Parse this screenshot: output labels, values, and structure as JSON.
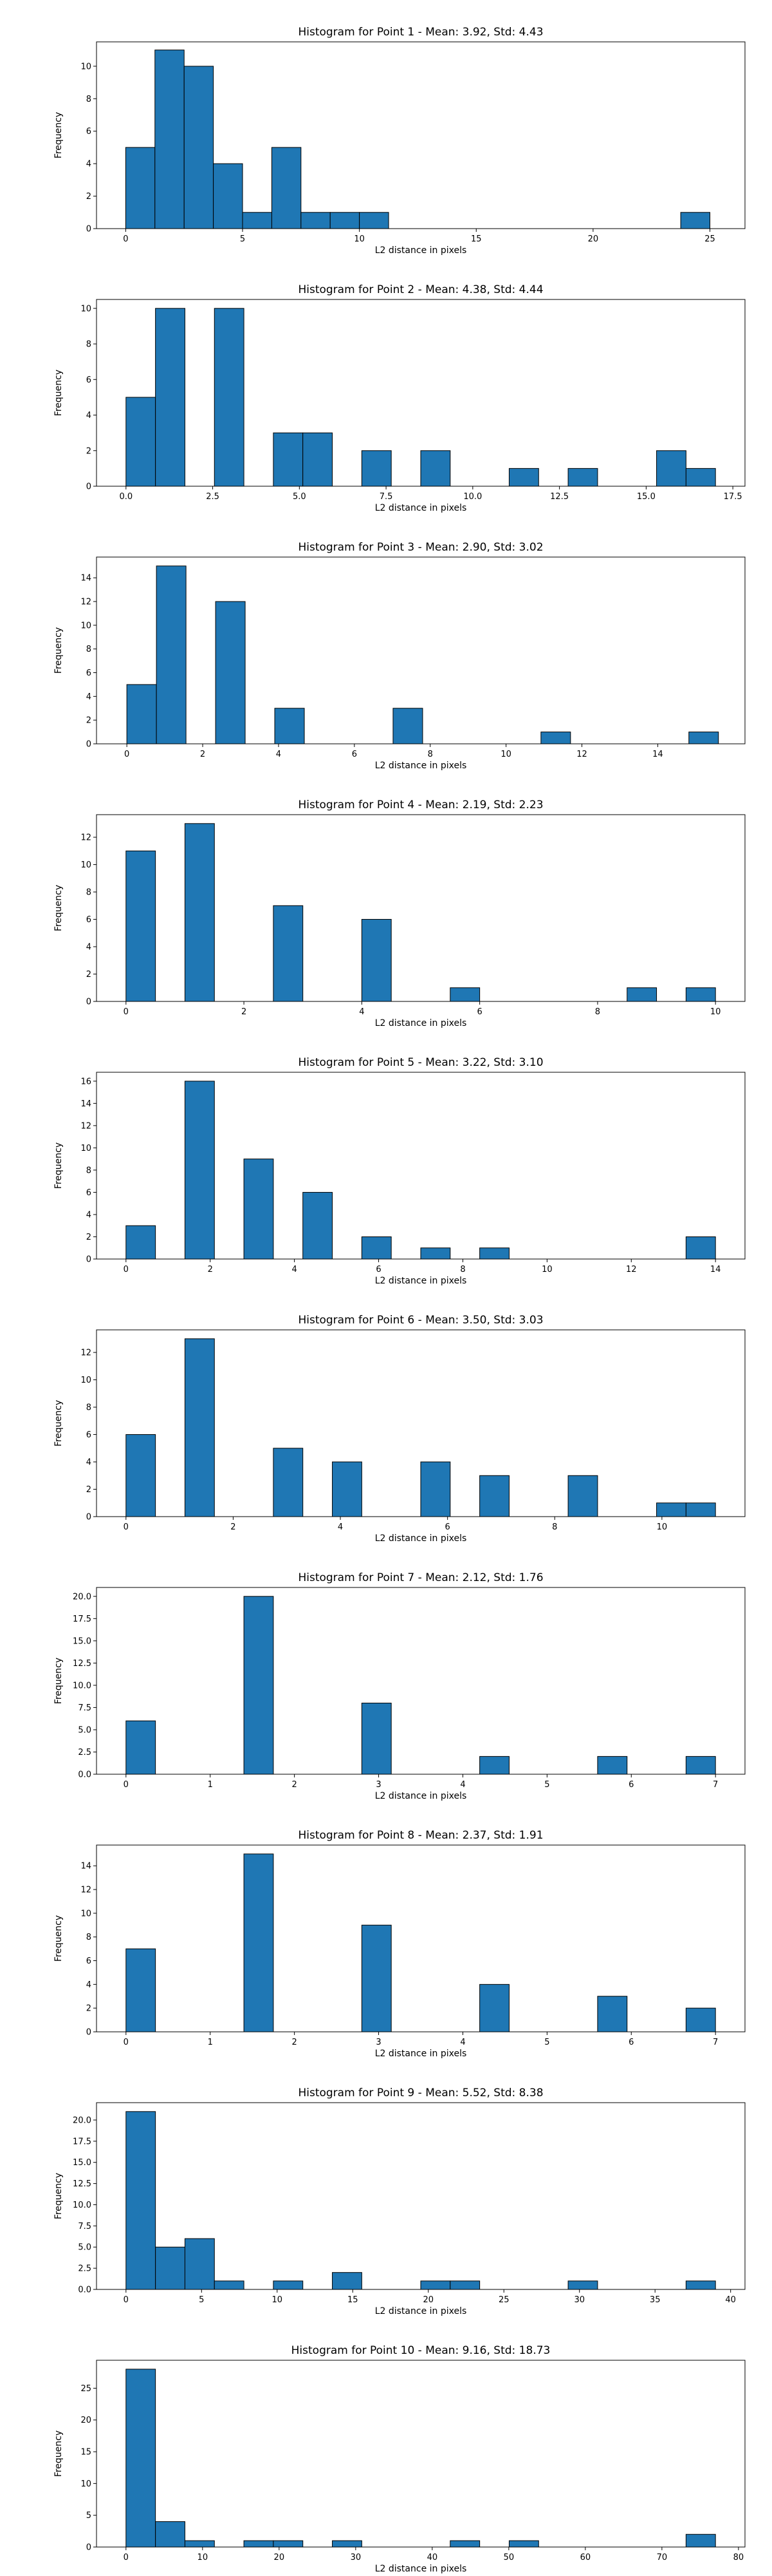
{
  "chart_data": [
    {
      "type": "bar",
      "title": "Histogram for Point 1 - Mean: 3.92, Std: 4.43",
      "xlabel": "L2 distance in pixels",
      "ylabel": "Frequency",
      "xlim": [
        -1.25,
        26.5
      ],
      "ylim": [
        0,
        11.5
      ],
      "xticks": [
        {
          "v": 0,
          "label": "0"
        },
        {
          "v": 5,
          "label": "5"
        },
        {
          "v": 10,
          "label": "10"
        },
        {
          "v": 15,
          "label": "15"
        },
        {
          "v": 20,
          "label": "20"
        },
        {
          "v": 25,
          "label": "25"
        }
      ],
      "yticks": [
        0,
        2,
        4,
        6,
        8,
        10
      ],
      "bin_width": 1.25,
      "bins": [
        [
          0,
          5
        ],
        [
          1.25,
          11
        ],
        [
          2.5,
          10
        ],
        [
          3.75,
          4
        ],
        [
          5,
          1
        ],
        [
          6.25,
          5
        ],
        [
          7.5,
          1
        ],
        [
          8.75,
          1
        ],
        [
          10,
          1
        ],
        [
          23.75,
          1
        ]
      ]
    },
    {
      "type": "bar",
      "title": "Histogram for Point 2 - Mean: 4.38, Std: 4.44",
      "xlabel": "L2 distance in pixels",
      "ylabel": "Frequency",
      "xlim": [
        -0.85,
        17.85
      ],
      "ylim": [
        0,
        10.5
      ],
      "xticks": [
        {
          "v": 0,
          "label": "0.0"
        },
        {
          "v": 2.5,
          "label": "2.5"
        },
        {
          "v": 5,
          "label": "5.0"
        },
        {
          "v": 7.5,
          "label": "7.5"
        },
        {
          "v": 10,
          "label": "10.0"
        },
        {
          "v": 12.5,
          "label": "12.5"
        },
        {
          "v": 15,
          "label": "15.0"
        },
        {
          "v": 17.5,
          "label": "17.5"
        }
      ],
      "yticks": [
        0,
        2,
        4,
        6,
        8,
        10
      ],
      "bin_width": 0.85,
      "bins": [
        [
          0,
          5
        ],
        [
          0.85,
          10
        ],
        [
          2.55,
          10
        ],
        [
          4.25,
          3
        ],
        [
          5.1,
          3
        ],
        [
          6.8,
          2
        ],
        [
          8.5,
          2
        ],
        [
          11.05,
          1
        ],
        [
          12.75,
          1
        ],
        [
          15.3,
          2
        ],
        [
          16.15,
          1
        ]
      ]
    },
    {
      "type": "bar",
      "title": "Histogram for Point 3 - Mean: 2.90, Std: 3.02",
      "xlabel": "L2 distance in pixels",
      "ylabel": "Frequency",
      "xlim": [
        -0.8,
        16.3
      ],
      "ylim": [
        0,
        15.75
      ],
      "xticks": [
        {
          "v": 0,
          "label": "0"
        },
        {
          "v": 2,
          "label": "2"
        },
        {
          "v": 4,
          "label": "4"
        },
        {
          "v": 6,
          "label": "6"
        },
        {
          "v": 8,
          "label": "8"
        },
        {
          "v": 10,
          "label": "10"
        },
        {
          "v": 12,
          "label": "12"
        },
        {
          "v": 14,
          "label": "14"
        }
      ],
      "yticks": [
        0,
        2,
        4,
        6,
        8,
        10,
        12,
        14
      ],
      "bin_width": 0.78,
      "bins": [
        [
          0,
          5
        ],
        [
          0.78,
          15
        ],
        [
          2.34,
          12
        ],
        [
          3.9,
          3
        ],
        [
          7.02,
          3
        ],
        [
          10.92,
          1
        ],
        [
          14.82,
          1
        ]
      ]
    },
    {
      "type": "bar",
      "title": "Histogram for Point 4 - Mean: 2.19, Std: 2.23",
      "xlabel": "L2 distance in pixels",
      "ylabel": "Frequency",
      "xlim": [
        -0.5,
        10.5
      ],
      "ylim": [
        0,
        13.65
      ],
      "xticks": [
        {
          "v": 0,
          "label": "0"
        },
        {
          "v": 2,
          "label": "2"
        },
        {
          "v": 4,
          "label": "4"
        },
        {
          "v": 6,
          "label": "6"
        },
        {
          "v": 8,
          "label": "8"
        },
        {
          "v": 10,
          "label": "10"
        }
      ],
      "yticks": [
        0,
        2,
        4,
        6,
        8,
        10,
        12
      ],
      "bin_width": 0.5,
      "bins": [
        [
          0,
          11
        ],
        [
          1,
          13
        ],
        [
          2.5,
          7
        ],
        [
          4,
          6
        ],
        [
          5.5,
          1
        ],
        [
          8.5,
          1
        ],
        [
          9.5,
          1
        ]
      ]
    },
    {
      "type": "bar",
      "title": "Histogram for Point 5 - Mean: 3.22, Std: 3.10",
      "xlabel": "L2 distance in pixels",
      "ylabel": "Frequency",
      "xlim": [
        -0.7,
        14.7
      ],
      "ylim": [
        0,
        16.8
      ],
      "xticks": [
        {
          "v": 0,
          "label": "0"
        },
        {
          "v": 2,
          "label": "2"
        },
        {
          "v": 4,
          "label": "4"
        },
        {
          "v": 6,
          "label": "6"
        },
        {
          "v": 8,
          "label": "8"
        },
        {
          "v": 10,
          "label": "10"
        },
        {
          "v": 12,
          "label": "12"
        },
        {
          "v": 14,
          "label": "14"
        }
      ],
      "yticks": [
        0,
        2,
        4,
        6,
        8,
        10,
        12,
        14,
        16
      ],
      "bin_width": 0.7,
      "bins": [
        [
          0,
          3
        ],
        [
          1.4,
          16
        ],
        [
          2.8,
          9
        ],
        [
          4.2,
          6
        ],
        [
          5.6,
          2
        ],
        [
          7,
          1
        ],
        [
          8.4,
          1
        ],
        [
          13.3,
          2
        ]
      ]
    },
    {
      "type": "bar",
      "title": "Histogram for Point 6 - Mean: 3.50, Std: 3.03",
      "xlabel": "L2 distance in pixels",
      "ylabel": "Frequency",
      "xlim": [
        -0.55,
        11.55
      ],
      "ylim": [
        0,
        13.65
      ],
      "xticks": [
        {
          "v": 0,
          "label": "0"
        },
        {
          "v": 2,
          "label": "2"
        },
        {
          "v": 4,
          "label": "4"
        },
        {
          "v": 6,
          "label": "6"
        },
        {
          "v": 8,
          "label": "8"
        },
        {
          "v": 10,
          "label": "10"
        }
      ],
      "yticks": [
        0,
        2,
        4,
        6,
        8,
        10,
        12
      ],
      "bin_width": 0.55,
      "bins": [
        [
          0,
          6
        ],
        [
          1.1,
          13
        ],
        [
          2.75,
          5
        ],
        [
          3.85,
          4
        ],
        [
          5.5,
          4
        ],
        [
          6.6,
          3
        ],
        [
          8.25,
          3
        ],
        [
          9.9,
          1
        ],
        [
          10.45,
          1
        ]
      ]
    },
    {
      "type": "bar",
      "title": "Histogram for Point 7 - Mean: 2.12, Std: 1.76",
      "xlabel": "L2 distance in pixels",
      "ylabel": "Frequency",
      "xlim": [
        -0.35,
        7.35
      ],
      "ylim": [
        0,
        21
      ],
      "xticks": [
        {
          "v": 0,
          "label": "0"
        },
        {
          "v": 1,
          "label": "1"
        },
        {
          "v": 2,
          "label": "2"
        },
        {
          "v": 3,
          "label": "3"
        },
        {
          "v": 4,
          "label": "4"
        },
        {
          "v": 5,
          "label": "5"
        },
        {
          "v": 6,
          "label": "6"
        },
        {
          "v": 7,
          "label": "7"
        }
      ],
      "yticks": [
        {
          "v": 0,
          "label": "0.0"
        },
        {
          "v": 2.5,
          "label": "2.5"
        },
        {
          "v": 5,
          "label": "5.0"
        },
        {
          "v": 7.5,
          "label": "7.5"
        },
        {
          "v": 10,
          "label": "10.0"
        },
        {
          "v": 12.5,
          "label": "12.5"
        },
        {
          "v": 15,
          "label": "15.0"
        },
        {
          "v": 17.5,
          "label": "17.5"
        },
        {
          "v": 20,
          "label": "20.0"
        }
      ],
      "bin_width": 0.35,
      "bins": [
        [
          0,
          6
        ],
        [
          1.4,
          20
        ],
        [
          2.8,
          8
        ],
        [
          4.2,
          2
        ],
        [
          5.6,
          2
        ],
        [
          6.65,
          2
        ]
      ]
    },
    {
      "type": "bar",
      "title": "Histogram for Point 8 - Mean: 2.37, Std: 1.91",
      "xlabel": "L2 distance in pixels",
      "ylabel": "Frequency",
      "xlim": [
        -0.35,
        7.35
      ],
      "ylim": [
        0,
        15.75
      ],
      "xticks": [
        {
          "v": 0,
          "label": "0"
        },
        {
          "v": 1,
          "label": "1"
        },
        {
          "v": 2,
          "label": "2"
        },
        {
          "v": 3,
          "label": "3"
        },
        {
          "v": 4,
          "label": "4"
        },
        {
          "v": 5,
          "label": "5"
        },
        {
          "v": 6,
          "label": "6"
        },
        {
          "v": 7,
          "label": "7"
        }
      ],
      "yticks": [
        0,
        2,
        4,
        6,
        8,
        10,
        12,
        14
      ],
      "bin_width": 0.35,
      "bins": [
        [
          0,
          7
        ],
        [
          1.4,
          15
        ],
        [
          2.8,
          9
        ],
        [
          4.2,
          4
        ],
        [
          5.6,
          3
        ],
        [
          6.65,
          2
        ]
      ]
    },
    {
      "type": "bar",
      "title": "Histogram for Point 9 - Mean: 5.52, Std: 8.38",
      "xlabel": "L2 distance in pixels",
      "ylabel": "Frequency",
      "xlim": [
        -1.95,
        40.95
      ],
      "ylim": [
        0,
        22.05
      ],
      "xticks": [
        {
          "v": 0,
          "label": "0"
        },
        {
          "v": 5,
          "label": "5"
        },
        {
          "v": 10,
          "label": "10"
        },
        {
          "v": 15,
          "label": "15"
        },
        {
          "v": 20,
          "label": "20"
        },
        {
          "v": 25,
          "label": "25"
        },
        {
          "v": 30,
          "label": "30"
        },
        {
          "v": 35,
          "label": "35"
        },
        {
          "v": 40,
          "label": "40"
        }
      ],
      "yticks": [
        {
          "v": 0,
          "label": "0.0"
        },
        {
          "v": 2.5,
          "label": "2.5"
        },
        {
          "v": 5,
          "label": "5.0"
        },
        {
          "v": 7.5,
          "label": "7.5"
        },
        {
          "v": 10,
          "label": "10.0"
        },
        {
          "v": 12.5,
          "label": "12.5"
        },
        {
          "v": 15,
          "label": "15.0"
        },
        {
          "v": 17.5,
          "label": "17.5"
        },
        {
          "v": 20,
          "label": "20.0"
        }
      ],
      "bin_width": 1.95,
      "bins": [
        [
          0,
          21
        ],
        [
          1.95,
          5
        ],
        [
          3.9,
          6
        ],
        [
          5.85,
          1
        ],
        [
          9.75,
          1
        ],
        [
          13.65,
          2
        ],
        [
          19.5,
          1
        ],
        [
          21.45,
          1
        ],
        [
          29.25,
          1
        ],
        [
          37.05,
          1
        ]
      ]
    },
    {
      "type": "bar",
      "title": "Histogram for Point 10 - Mean: 9.16, Std: 18.73",
      "xlabel": "L2 distance in pixels",
      "ylabel": "Frequency",
      "xlim": [
        -3.85,
        80.85
      ],
      "ylim": [
        0,
        29.4
      ],
      "xticks": [
        {
          "v": 0,
          "label": "0"
        },
        {
          "v": 10,
          "label": "10"
        },
        {
          "v": 20,
          "label": "20"
        },
        {
          "v": 30,
          "label": "30"
        },
        {
          "v": 40,
          "label": "40"
        },
        {
          "v": 50,
          "label": "50"
        },
        {
          "v": 60,
          "label": "60"
        },
        {
          "v": 70,
          "label": "70"
        },
        {
          "v": 80,
          "label": "80"
        }
      ],
      "yticks": [
        0,
        5,
        10,
        15,
        20,
        25
      ],
      "bin_width": 3.85,
      "bins": [
        [
          0,
          28
        ],
        [
          3.85,
          4
        ],
        [
          7.7,
          1
        ],
        [
          15.4,
          1
        ],
        [
          19.25,
          1
        ],
        [
          26.95,
          1
        ],
        [
          42.35,
          1
        ],
        [
          50.05,
          1
        ],
        [
          73.15,
          2
        ]
      ]
    }
  ]
}
